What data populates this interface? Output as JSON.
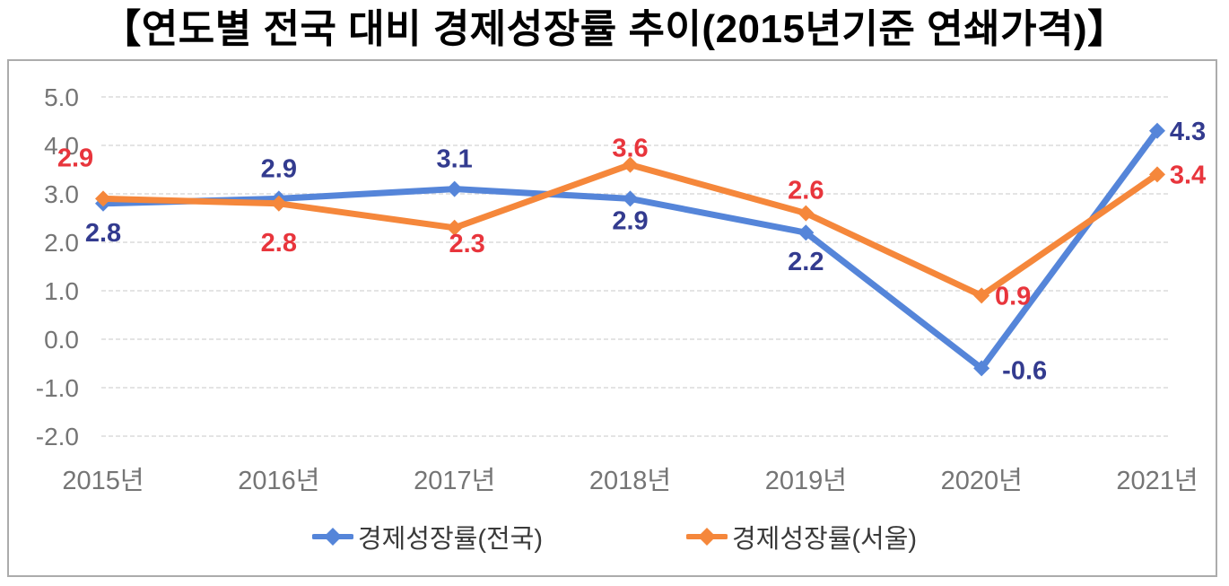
{
  "page": {
    "title": "【연도별 전국 대비 경제성장률 추이(2015년기준 연쇄가격)】"
  },
  "chart_data": {
    "type": "line",
    "title": "연도별 전국 대비 경제성장률 추이(2015년기준 연쇄가격)",
    "categories": [
      "2015년",
      "2016년",
      "2017년",
      "2018년",
      "2019년",
      "2020년",
      "2021년"
    ],
    "series": [
      {
        "name": "경제성장률(전국)",
        "color": "#5585d9",
        "label_color": "#333b8f",
        "values": [
          2.8,
          2.9,
          3.1,
          2.9,
          2.2,
          -0.6,
          4.3
        ],
        "label_offsets": [
          [
            0,
            32
          ],
          [
            0,
            -34
          ],
          [
            0,
            -34
          ],
          [
            0,
            24
          ],
          [
            0,
            32
          ],
          [
            48,
            2
          ],
          [
            34,
            0
          ]
        ]
      },
      {
        "name": "경제성장률(서울)",
        "color": "#f5873b",
        "label_color": "#e8353c",
        "values": [
          2.9,
          2.8,
          2.3,
          3.6,
          2.6,
          0.9,
          3.4
        ],
        "label_offsets": [
          [
            -31,
            -46
          ],
          [
            0,
            43
          ],
          [
            14,
            17
          ],
          [
            0,
            -19
          ],
          [
            0,
            -26
          ],
          [
            35,
            0
          ],
          [
            34,
            0
          ]
        ]
      }
    ],
    "yticks": [
      5.0,
      4.0,
      3.0,
      2.0,
      1.0,
      0.0,
      -1.0,
      -2.0
    ],
    "ylim": [
      -2.0,
      5.0
    ],
    "grid": true,
    "legend_position": "bottom",
    "axis_color": "#757575",
    "grid_color": "#dbdbdb"
  }
}
